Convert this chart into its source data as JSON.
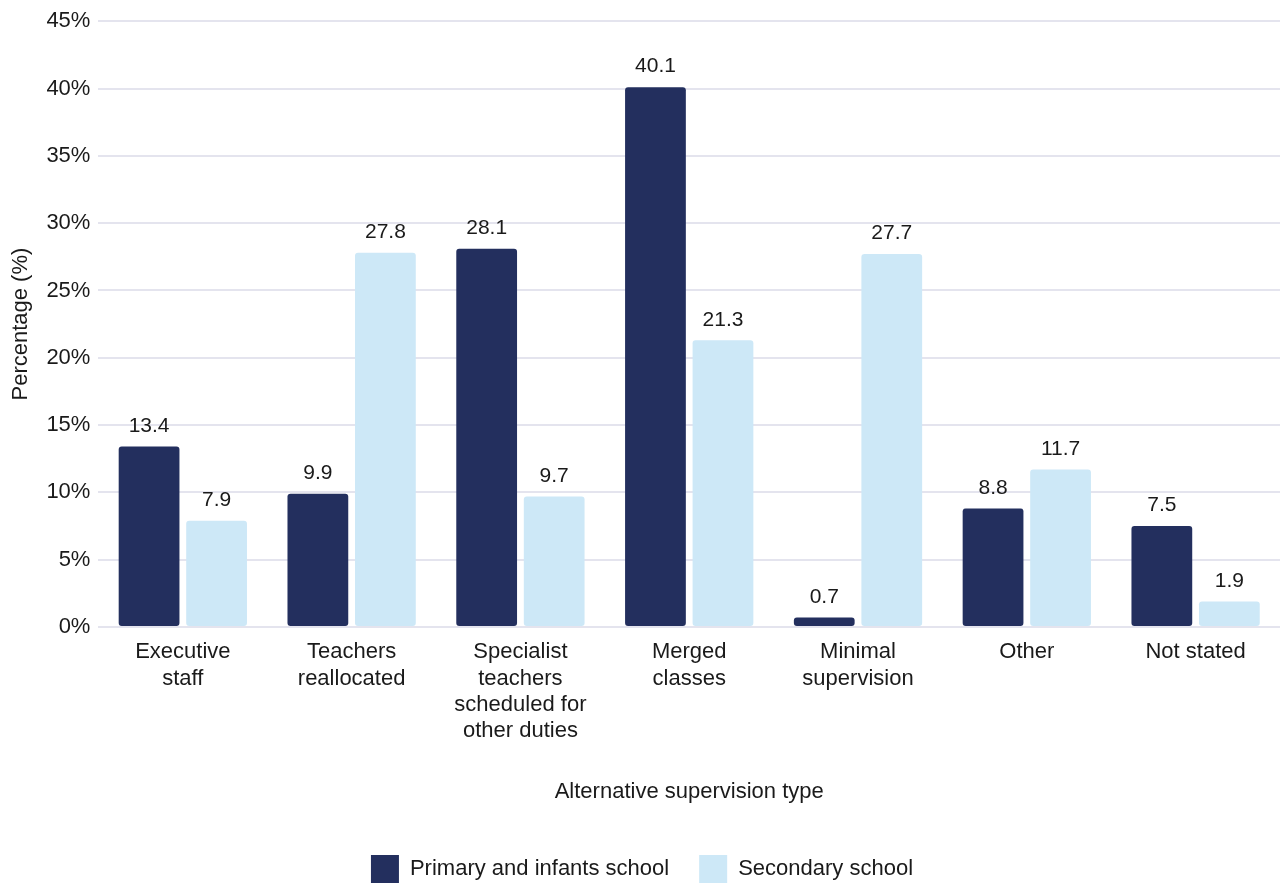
{
  "chart_data": {
    "type": "bar",
    "xlabel": "Alternative supervision type",
    "ylabel": "Percentage (%)",
    "categories": [
      "Executive staff",
      "Teachers reallocated",
      "Specialist teachers scheduled for other duties",
      "Merged classes",
      "Minimal supervision",
      "Other",
      "Not stated"
    ],
    "series": [
      {
        "name": "Primary and infants school",
        "color": "#232f5e",
        "values": [
          13.4,
          9.9,
          28.1,
          40.1,
          0.7,
          8.8,
          7.5
        ]
      },
      {
        "name": "Secondary school",
        "color": "#cde8f7",
        "values": [
          7.9,
          27.8,
          9.7,
          21.3,
          27.7,
          11.7,
          1.9
        ]
      }
    ],
    "ylim": [
      0,
      45
    ],
    "yticks": [
      {
        "value": 0,
        "label": "0%"
      },
      {
        "value": 5,
        "label": "5%"
      },
      {
        "value": 10,
        "label": "10%"
      },
      {
        "value": 15,
        "label": "15%"
      },
      {
        "value": 20,
        "label": "20%"
      },
      {
        "value": 25,
        "label": "25%"
      },
      {
        "value": 30,
        "label": "30%"
      },
      {
        "value": 35,
        "label": "35%"
      },
      {
        "value": 40,
        "label": "40%"
      },
      {
        "value": 45,
        "label": "45%"
      }
    ],
    "grid": "y",
    "legend": "bottom",
    "data_labels": true
  }
}
